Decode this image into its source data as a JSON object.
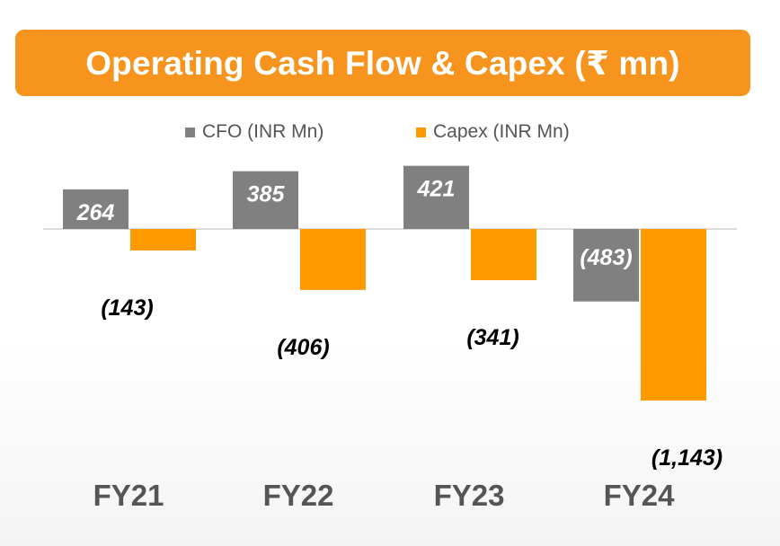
{
  "title": "Operating Cash Flow & Capex (₹ mn)",
  "colors": {
    "accent": "#F7941D",
    "cfo": "#808080",
    "capex": "#FF9900",
    "axis": "#d0d0d0",
    "label_dark": "#000000",
    "label_light": "#ffffff",
    "tick": "#555555"
  },
  "chart_data": {
    "type": "bar",
    "title": "Operating Cash Flow & Capex (₹ mn)",
    "categories": [
      "FY21",
      "FY22",
      "FY23",
      "FY24"
    ],
    "series": [
      {
        "name": "CFO (INR Mn)",
        "values": [
          264,
          385,
          421,
          -483
        ],
        "labels": [
          "264",
          "385",
          "421",
          "(483)"
        ]
      },
      {
        "name": "Capex (INR Mn)",
        "values": [
          -143,
          -406,
          -341,
          -1143
        ],
        "labels": [
          "(143)",
          "(406)",
          "(341)",
          "(1,143)"
        ]
      }
    ],
    "legend_position": "top-center",
    "grid": false,
    "xlabel": "",
    "ylabel": "",
    "ylim": [
      -1143,
      421
    ]
  }
}
